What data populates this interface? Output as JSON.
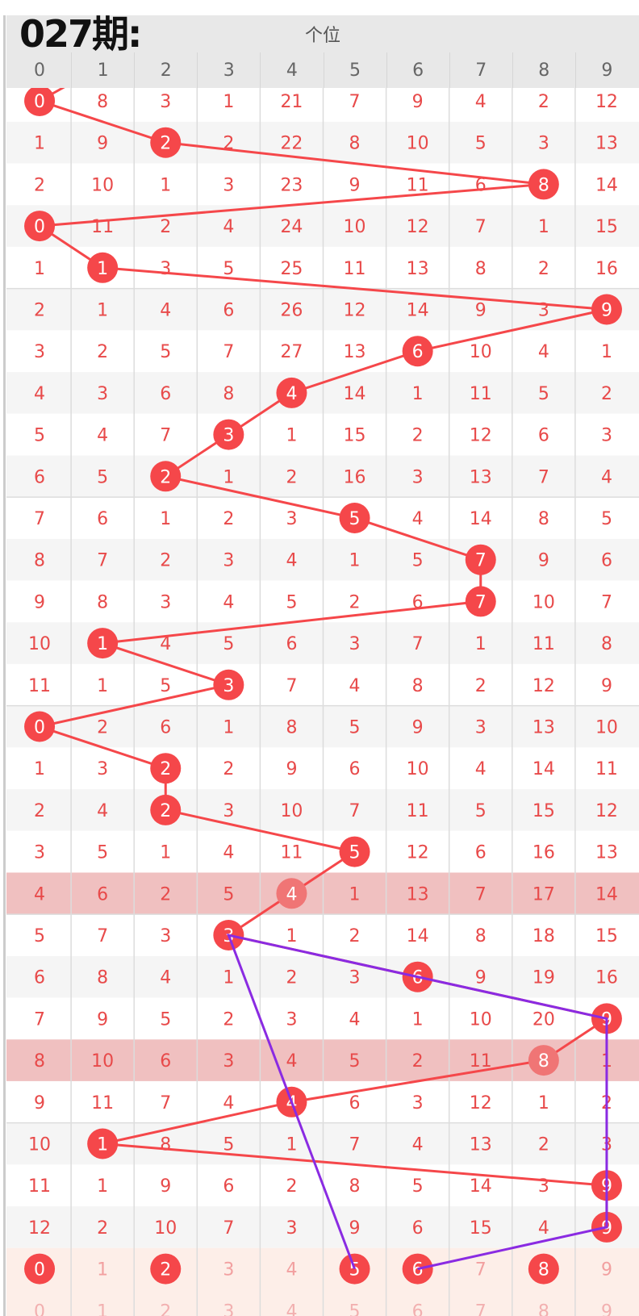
{
  "header": {
    "title": "个位",
    "digits": [
      "0",
      "1",
      "2",
      "3",
      "4",
      "5",
      "6",
      "7",
      "8",
      "9"
    ]
  },
  "colors": {
    "hit": "#f5474a",
    "hit_faded": "#f07575",
    "text": "#e84a4a",
    "highlight_row": "#f0c0c0",
    "prediction_row": "#fdeee8",
    "stripe": "#f5f5f5",
    "trend_line": "#f5474a",
    "forecast_line": "#8a2be2"
  },
  "rows": [
    {
      "values": [
        "0",
        "8",
        "3",
        "1",
        "21",
        "7",
        "9",
        "4",
        "2",
        "12"
      ],
      "hit": 0
    },
    {
      "values": [
        "1",
        "9",
        "2",
        "2",
        "22",
        "8",
        "10",
        "5",
        "3",
        "13"
      ],
      "hit": 2
    },
    {
      "values": [
        "2",
        "10",
        "1",
        "3",
        "23",
        "9",
        "11",
        "6",
        "8",
        "14"
      ],
      "hit": 8
    },
    {
      "values": [
        "0",
        "11",
        "2",
        "4",
        "24",
        "10",
        "12",
        "7",
        "1",
        "15"
      ],
      "hit": 0
    },
    {
      "values": [
        "1",
        "1",
        "3",
        "5",
        "25",
        "11",
        "13",
        "8",
        "2",
        "16"
      ],
      "hit": 1
    },
    {
      "values": [
        "2",
        "1",
        "4",
        "6",
        "26",
        "12",
        "14",
        "9",
        "3",
        "9"
      ],
      "hit": 9
    },
    {
      "values": [
        "3",
        "2",
        "5",
        "7",
        "27",
        "13",
        "6",
        "10",
        "4",
        "1"
      ],
      "hit": 6
    },
    {
      "values": [
        "4",
        "3",
        "6",
        "8",
        "4",
        "14",
        "1",
        "11",
        "5",
        "2"
      ],
      "hit": 4
    },
    {
      "values": [
        "5",
        "4",
        "7",
        "3",
        "1",
        "15",
        "2",
        "12",
        "6",
        "3"
      ],
      "hit": 3
    },
    {
      "values": [
        "6",
        "5",
        "2",
        "1",
        "2",
        "16",
        "3",
        "13",
        "7",
        "4"
      ],
      "hit": 2
    },
    {
      "values": [
        "7",
        "6",
        "1",
        "2",
        "3",
        "5",
        "4",
        "14",
        "8",
        "5"
      ],
      "hit": 5
    },
    {
      "values": [
        "8",
        "7",
        "2",
        "3",
        "4",
        "1",
        "5",
        "7",
        "9",
        "6"
      ],
      "hit": 7
    },
    {
      "values": [
        "9",
        "8",
        "3",
        "4",
        "5",
        "2",
        "6",
        "7",
        "10",
        "7"
      ],
      "hit": 7
    },
    {
      "values": [
        "10",
        "1",
        "4",
        "5",
        "6",
        "3",
        "7",
        "1",
        "11",
        "8"
      ],
      "hit": 1
    },
    {
      "values": [
        "11",
        "1",
        "5",
        "3",
        "7",
        "4",
        "8",
        "2",
        "12",
        "9"
      ],
      "hit": 3
    },
    {
      "values": [
        "0",
        "2",
        "6",
        "1",
        "8",
        "5",
        "9",
        "3",
        "13",
        "10"
      ],
      "hit": 0
    },
    {
      "values": [
        "1",
        "3",
        "2",
        "2",
        "9",
        "6",
        "10",
        "4",
        "14",
        "11"
      ],
      "hit": 2
    },
    {
      "values": [
        "2",
        "4",
        "2",
        "3",
        "10",
        "7",
        "11",
        "5",
        "15",
        "12"
      ],
      "hit": 2
    },
    {
      "values": [
        "3",
        "5",
        "1",
        "4",
        "11",
        "5",
        "12",
        "6",
        "16",
        "13"
      ],
      "hit": 5
    },
    {
      "values": [
        "4",
        "6",
        "2",
        "5",
        "4",
        "1",
        "13",
        "7",
        "17",
        "14"
      ],
      "hit": 4,
      "highlight": true
    },
    {
      "values": [
        "5",
        "7",
        "3",
        "3",
        "1",
        "2",
        "14",
        "8",
        "18",
        "15"
      ],
      "hit": 3
    },
    {
      "values": [
        "6",
        "8",
        "4",
        "1",
        "2",
        "3",
        "6",
        "9",
        "19",
        "16"
      ],
      "hit": 6
    },
    {
      "values": [
        "7",
        "9",
        "5",
        "2",
        "3",
        "4",
        "1",
        "10",
        "20",
        "9"
      ],
      "hit": 9
    },
    {
      "values": [
        "8",
        "10",
        "6",
        "3",
        "4",
        "5",
        "2",
        "11",
        "8",
        "1"
      ],
      "hit": 8,
      "highlight": true
    },
    {
      "values": [
        "9",
        "11",
        "7",
        "4",
        "4",
        "6",
        "3",
        "12",
        "1",
        "2"
      ],
      "hit": 4
    },
    {
      "values": [
        "10",
        "1",
        "8",
        "5",
        "1",
        "7",
        "4",
        "13",
        "2",
        "3"
      ],
      "hit": 1
    },
    {
      "values": [
        "11",
        "1",
        "9",
        "6",
        "2",
        "8",
        "5",
        "14",
        "3",
        "9"
      ],
      "hit": 9
    },
    {
      "values": [
        "12",
        "2",
        "10",
        "7",
        "3",
        "9",
        "6",
        "15",
        "4",
        "9"
      ],
      "hit": 9
    }
  ],
  "prediction": {
    "label": "027期:",
    "values": [
      "0",
      "1",
      "2",
      "3",
      "4",
      "5",
      "6",
      "7",
      "8",
      "9"
    ],
    "selected": [
      0,
      2,
      5,
      6,
      8
    ]
  },
  "footer_digits": [
    "0",
    "1",
    "2",
    "3",
    "4",
    "5",
    "6",
    "7",
    "8",
    "9"
  ],
  "forecast_path": [
    [
      28,
      5
    ],
    [
      20,
      3
    ],
    [
      22,
      9
    ],
    [
      27,
      9
    ],
    [
      28,
      6
    ]
  ]
}
